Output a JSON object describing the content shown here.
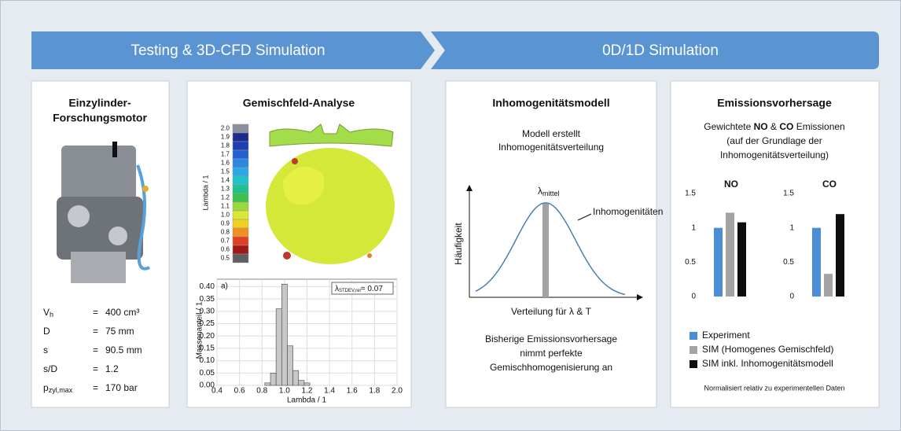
{
  "banner": {
    "left": "Testing & 3D-CFD Simulation",
    "right": "0D/1D Simulation"
  },
  "engine": {
    "title": [
      "Einzylinder-",
      "Forschungsmotor"
    ],
    "specs": [
      {
        "symbol": "V",
        "sub": "h",
        "eq": "=",
        "value": "400 cm³"
      },
      {
        "symbol": "D",
        "eq": "=",
        "value": "75 mm"
      },
      {
        "symbol": "s",
        "eq": "=",
        "value": "90.5 mm"
      },
      {
        "symbol": "s/D",
        "eq": "=",
        "value": "1.2"
      },
      {
        "symbol": "p",
        "sub": "zyl,max",
        "eq": "=",
        "value": "170 bar"
      }
    ]
  },
  "mixture": {
    "title": "Gemischfeld-Analyse",
    "colorbar": {
      "label": "Lambda / 1",
      "ticks": [
        "2.0",
        "1.9",
        "1.8",
        "1.7",
        "1.6",
        "1.5",
        "1.4",
        "1.3",
        "1.2",
        "1.1",
        "1.0",
        "0.9",
        "0.8",
        "0.7",
        "0.6",
        "0.5"
      ]
    },
    "histogram": {
      "type": "histogram",
      "annotation": "a)",
      "stat": {
        "symbol": "λ",
        "sub": "STDEV,rel",
        "text": "= 0.07"
      },
      "bins": [
        0.825,
        0.875,
        0.925,
        0.975,
        1.025,
        1.075,
        1.125,
        1.175,
        1.225
      ],
      "values": [
        0.01,
        0.05,
        0.31,
        0.41,
        0.16,
        0.06,
        0.02,
        0.01
      ],
      "color": "#c8c8c8",
      "xlim": [
        0.4,
        2.0
      ],
      "xticks": [
        0.4,
        0.6,
        0.8,
        {
          "value": 1.0,
          "label": "1.0"
        },
        1.2,
        1.4,
        1.6,
        1.8,
        {
          "value": 2.0,
          "label": "2.0"
        }
      ],
      "ylim": [
        0,
        0.43
      ],
      "yticks": [
        {
          "value": 0,
          "label": "0.00"
        },
        {
          "value": 0.05,
          "label": "0.05"
        },
        {
          "value": 0.1,
          "label": "0.10"
        },
        {
          "value": 0.15,
          "label": "0.15"
        },
        {
          "value": 0.2,
          "label": "0.20"
        },
        {
          "value": 0.25,
          "label": "0.25"
        },
        {
          "value": 0.3,
          "label": "0.30"
        },
        {
          "value": 0.35,
          "label": "0.35"
        },
        {
          "value": 0.4,
          "label": "0.40"
        }
      ],
      "x_label": "Lambda / 1",
      "y_label": "Massenanteil / 1",
      "grid": true
    }
  },
  "model": {
    "title": "Inhomogenitätsmodell",
    "intro": [
      "Modell erstellt",
      "Inhomogenitätsverteilung"
    ],
    "peak": {
      "symbol": "λ",
      "sub": "mittel"
    },
    "curve_label": "Inhomogenitäten",
    "y_label": "Häufigkeit",
    "x_label": "Verteilung für λ & T",
    "outro": [
      "Bisherige Emissionsvorhersage",
      "nimmt perfekte",
      "Gemischhomogenisierung an"
    ]
  },
  "emissions": {
    "title": "Emissionsvorhersage",
    "desc": {
      "pre": "Gewichtete",
      "b1": "NO",
      "mid": "&",
      "b2": "CO",
      "post": "Emissionen",
      "rest": [
        "(auf der Grundlage der",
        "Inhomogenitätsverteilung)"
      ]
    },
    "series": [
      {
        "name": "Experiment",
        "color": "#4a8fd6"
      },
      {
        "name": "SIM (Homogenes Gemischfeld)",
        "color": "#a3a3a3"
      },
      {
        "name": "SIM inkl. Inhomogenitätsmodell",
        "color": "#0d0d0d"
      }
    ],
    "charts": [
      {
        "type": "bar",
        "title": "NO",
        "values": [
          1,
          1.22,
          1.08
        ],
        "ylim": [
          0,
          1.5
        ],
        "yticks": [
          0,
          0.5,
          1,
          1.5
        ]
      },
      {
        "type": "bar",
        "title": "CO",
        "values": [
          1,
          0.33,
          1.2
        ],
        "ylim": [
          0,
          1.5
        ],
        "yticks": [
          0,
          0.5,
          1,
          1.5
        ]
      }
    ],
    "note": "Normalisiert relativ zu experimentellen Daten"
  }
}
